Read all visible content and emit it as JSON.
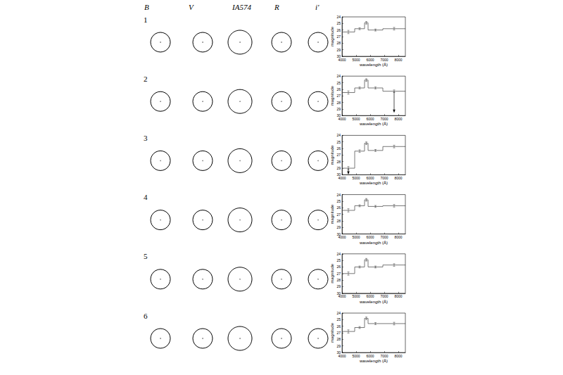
{
  "columns": [
    "B",
    "V",
    "IA574",
    "R",
    "i'"
  ],
  "rows": [
    "1",
    "2",
    "3",
    "4",
    "5",
    "6"
  ],
  "chart_data": [
    {
      "type": "step",
      "x_label": "wavelength (Å)",
      "y_label": "magnitude",
      "color": "#555555",
      "bins": [
        4000,
        4900,
        5600,
        5850,
        6900,
        8500
      ],
      "values": [
        26.3,
        25.8,
        24.9,
        26.0,
        25.8
      ],
      "errors": [
        0.25,
        0.15,
        0.2,
        0.15,
        0.2
      ],
      "upper_limits": [
        false,
        false,
        false,
        false,
        false
      ],
      "xlim": [
        4000,
        8500
      ],
      "xticks": [
        4000,
        5000,
        6000,
        7000,
        8000
      ],
      "ylim": [
        30,
        24
      ],
      "yticks": [
        24,
        25,
        26,
        27,
        28,
        29,
        30
      ]
    },
    {
      "type": "step",
      "x_label": "wavelength (Å)",
      "y_label": "magnitude",
      "color": "#555555",
      "bins": [
        4000,
        4900,
        5600,
        5850,
        6900,
        8500
      ],
      "values": [
        26.5,
        25.8,
        24.6,
        25.8,
        26.3
      ],
      "errors": [
        0.25,
        0.15,
        0.2,
        0.15,
        0.2
      ],
      "upper_limits": [
        false,
        false,
        false,
        false,
        true
      ],
      "xlim": [
        4000,
        8500
      ],
      "xticks": [
        4000,
        5000,
        6000,
        7000,
        8000
      ],
      "ylim": [
        30,
        24
      ],
      "yticks": [
        24,
        25,
        26,
        27,
        28,
        29,
        30
      ]
    },
    {
      "type": "step",
      "x_label": "wavelength (Å)",
      "y_label": "magnitude",
      "color": "#555555",
      "bins": [
        4000,
        4900,
        5600,
        5850,
        6900,
        8500
      ],
      "values": [
        29.0,
        26.4,
        25.2,
        26.3,
        25.7
      ],
      "errors": [
        0.25,
        0.2,
        0.2,
        0.15,
        0.2
      ],
      "upper_limits": [
        true,
        false,
        false,
        false,
        false
      ],
      "xlim": [
        4000,
        8500
      ],
      "xticks": [
        4000,
        5000,
        6000,
        7000,
        8000
      ],
      "ylim": [
        30,
        24
      ],
      "yticks": [
        24,
        25,
        26,
        27,
        28,
        29,
        30
      ]
    },
    {
      "type": "step",
      "x_label": "wavelength (Å)",
      "y_label": "magnitude",
      "color": "#555555",
      "bins": [
        4000,
        4900,
        5600,
        5850,
        6900,
        8500
      ],
      "values": [
        26.4,
        25.7,
        24.8,
        25.8,
        25.7
      ],
      "errors": [
        0.25,
        0.15,
        0.2,
        0.15,
        0.2
      ],
      "upper_limits": [
        false,
        false,
        false,
        false,
        false
      ],
      "xlim": [
        4000,
        8500
      ],
      "xticks": [
        4000,
        5000,
        6000,
        7000,
        8000
      ],
      "ylim": [
        30,
        24
      ],
      "yticks": [
        24,
        25,
        26,
        27,
        28,
        29,
        30
      ]
    },
    {
      "type": "step",
      "x_label": "wavelength (Å)",
      "y_label": "magnitude",
      "color": "#555555",
      "bins": [
        4000,
        4900,
        5600,
        5850,
        6900,
        8500
      ],
      "values": [
        27.0,
        26.0,
        24.9,
        26.0,
        25.7
      ],
      "errors": [
        0.25,
        0.15,
        0.2,
        0.15,
        0.2
      ],
      "upper_limits": [
        false,
        false,
        false,
        false,
        false
      ],
      "xlim": [
        4000,
        8500
      ],
      "xticks": [
        4000,
        5000,
        6000,
        7000,
        8000
      ],
      "ylim": [
        30,
        24
      ],
      "yticks": [
        24,
        25,
        26,
        27,
        28,
        29,
        30
      ]
    },
    {
      "type": "step",
      "x_label": "wavelength (Å)",
      "y_label": "magnitude",
      "color": "#555555",
      "bins": [
        4000,
        4900,
        5600,
        5850,
        6900,
        8500
      ],
      "values": [
        26.8,
        26.2,
        24.8,
        25.6,
        25.6
      ],
      "errors": [
        0.25,
        0.15,
        0.2,
        0.15,
        0.2
      ],
      "upper_limits": [
        false,
        false,
        false,
        false,
        false
      ],
      "xlim": [
        4000,
        8500
      ],
      "xticks": [
        4000,
        5000,
        6000,
        7000,
        8000
      ],
      "ylim": [
        30,
        24
      ],
      "yticks": [
        24,
        25,
        26,
        27,
        28,
        29,
        30
      ]
    }
  ]
}
